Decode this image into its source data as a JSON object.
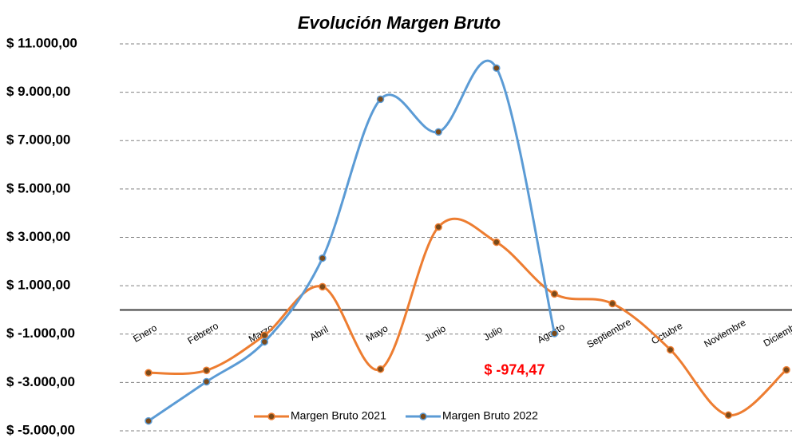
{
  "chart_data": {
    "type": "line",
    "title": "Evolución Margen Bruto",
    "categories": [
      "Enero",
      "Febrero",
      "Marzo",
      "Abril",
      "Mayo",
      "Junio",
      "Julio",
      "Agosto",
      "Septiembre",
      "Octubre",
      "Noviembre",
      "Diciembre"
    ],
    "series": [
      {
        "name": "Margen Bruto 2021",
        "color": "#ed7d31",
        "values": [
          -2600,
          -2500,
          -1050,
          960,
          -2450,
          3430,
          2800,
          660,
          260,
          -1650,
          -4350,
          -2480
        ]
      },
      {
        "name": "Margen Bruto 2022",
        "color": "#5b9bd5",
        "values": [
          -4590,
          -2970,
          -1320,
          2140,
          8710,
          7360,
          10000,
          -974.47,
          null,
          null,
          null,
          null
        ],
        "value_labels": [
          null,
          null,
          null,
          null,
          null,
          null,
          null,
          "$ -974,47",
          null,
          null,
          null,
          null
        ]
      }
    ],
    "ylim": [
      -5000,
      11000
    ],
    "yticks": [
      {
        "value": -5000,
        "label": "$ -5.000,00"
      },
      {
        "value": -3000,
        "label": "$ -3.000,00"
      },
      {
        "value": -1000,
        "label": "$ -1.000,00"
      },
      {
        "value": 1000,
        "label": "$ 1.000,00"
      },
      {
        "value": 3000,
        "label": "$ 3.000,00"
      },
      {
        "value": 5000,
        "label": "$ 5.000,00"
      },
      {
        "value": 7000,
        "label": "$ 7.000,00"
      },
      {
        "value": 9000,
        "label": "$ 9.000,00"
      },
      {
        "value": 11000,
        "label": "$ 11.000,00"
      }
    ],
    "grid": true,
    "legend": "bottom"
  }
}
